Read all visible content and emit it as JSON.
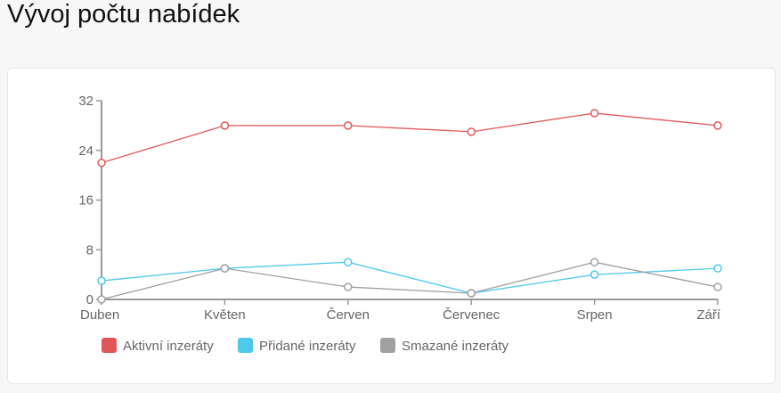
{
  "title": "Vývoj počtu nabídek",
  "chart_data": {
    "type": "line",
    "categories": [
      "Duben",
      "Květen",
      "Červen",
      "Červenec",
      "Srpen",
      "Září"
    ],
    "ylim": [
      0,
      32
    ],
    "yticks": [
      "0",
      "8",
      "16",
      "24",
      "32"
    ],
    "grid": false,
    "legend_position": "bottom-left",
    "series": [
      {
        "name": "Aktivní inzeráty",
        "color": "#e15759",
        "values": [
          22,
          28,
          28,
          27,
          30,
          28
        ]
      },
      {
        "name": "Přidané inzeráty",
        "color": "#4dc9ec",
        "values": [
          3,
          5,
          6,
          1,
          4,
          5
        ]
      },
      {
        "name": "Smazané inzeráty",
        "color": "#a0a0a0",
        "values": [
          0,
          5,
          2,
          1,
          6,
          2
        ]
      }
    ]
  }
}
